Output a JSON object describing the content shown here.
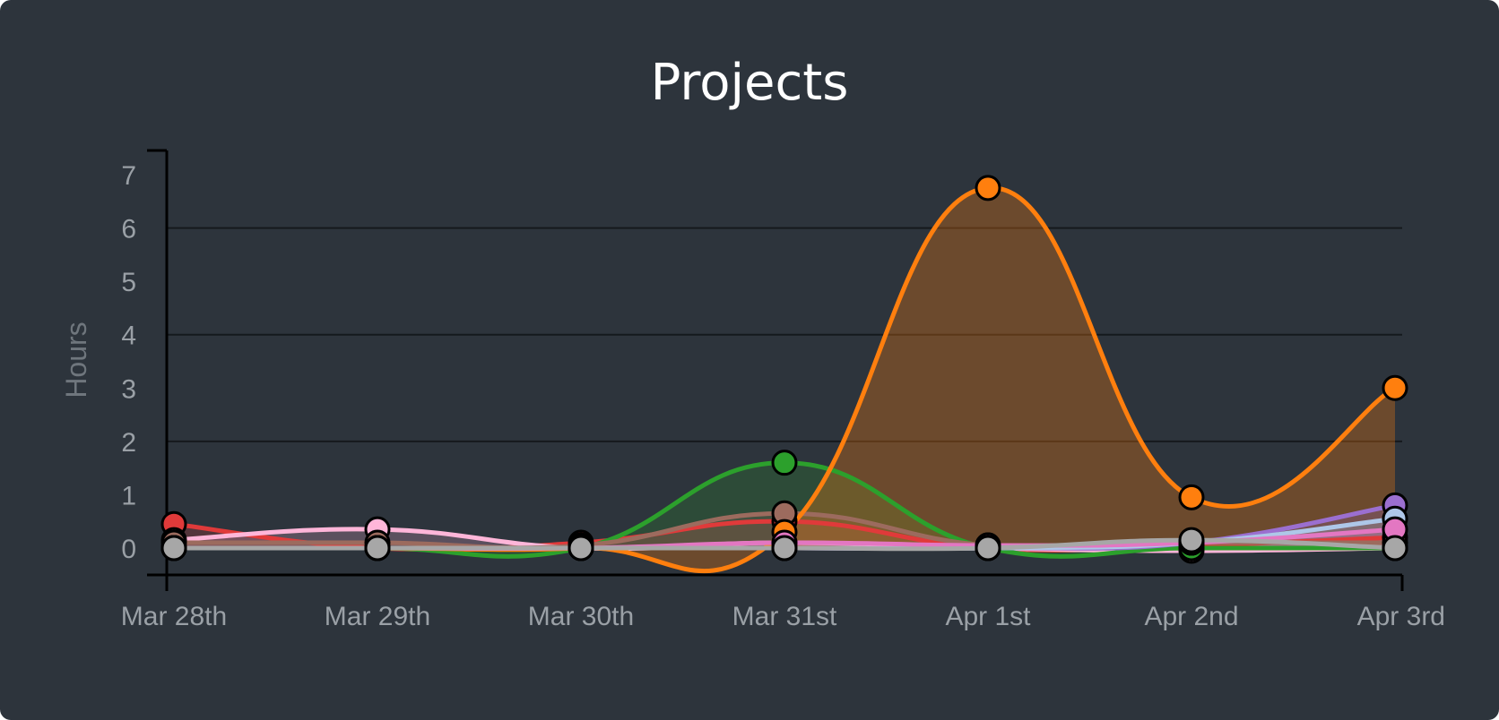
{
  "chart_data": {
    "type": "area",
    "title": "Projects",
    "xlabel": "",
    "ylabel": "Hours",
    "categories": [
      "Mar 28th",
      "Mar 29th",
      "Mar 30th",
      "Mar 31st",
      "Apr 1st",
      "Apr 2nd",
      "Apr 3rd"
    ],
    "yticks": [
      0,
      1,
      2,
      3,
      4,
      5,
      6,
      7
    ],
    "ylim": [
      -0.5,
      7.5
    ],
    "grid": true,
    "legend": "none",
    "series": [
      {
        "color": "#e03a3a",
        "values": [
          0.45,
          0.0,
          0.1,
          0.5,
          0.0,
          0.05,
          0.2
        ]
      },
      {
        "color": "#ffb6d9",
        "values": [
          0.15,
          0.35,
          0.0,
          0.1,
          0.0,
          -0.05,
          0.0
        ]
      },
      {
        "color": "#2ca02c",
        "values": [
          0.0,
          0.0,
          0.0,
          1.6,
          0.0,
          0.0,
          0.0
        ]
      },
      {
        "color": "#9c6b5e",
        "values": [
          0.1,
          0.1,
          0.05,
          0.65,
          0.05,
          0.1,
          0.1
        ]
      },
      {
        "color": "#ff7f0e",
        "values": [
          0.0,
          0.0,
          0.0,
          0.3,
          6.75,
          0.95,
          3.0
        ]
      },
      {
        "color": "#9b6fd0",
        "values": [
          0.0,
          0.0,
          0.0,
          0.0,
          0.0,
          0.1,
          0.8
        ]
      },
      {
        "color": "#aec7e8",
        "values": [
          0.0,
          0.0,
          0.0,
          0.0,
          0.0,
          0.1,
          0.55
        ]
      },
      {
        "color": "#e377c2",
        "values": [
          0.0,
          0.0,
          0.0,
          0.1,
          0.05,
          0.1,
          0.35
        ]
      },
      {
        "color": "#a7a7a7",
        "values": [
          0.0,
          0.0,
          0.0,
          0.0,
          0.0,
          0.15,
          0.0
        ]
      }
    ]
  }
}
